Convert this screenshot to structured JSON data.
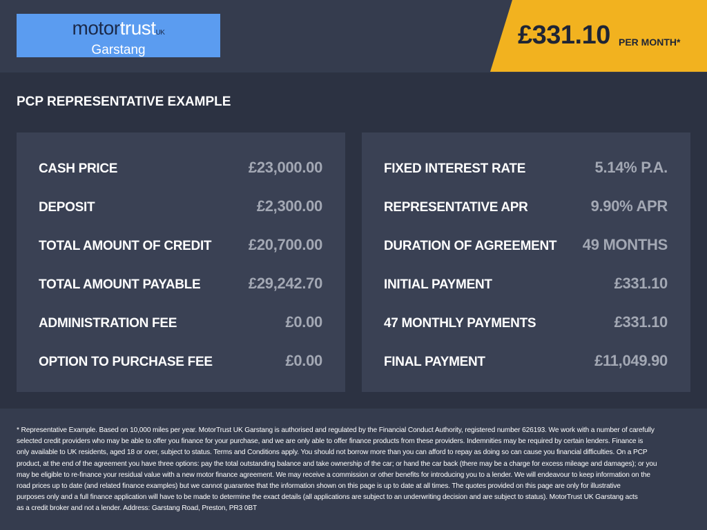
{
  "header": {
    "logo": {
      "part1": "motor",
      "part2": "trust",
      "suffix": "UK",
      "location": "Garstang"
    },
    "price": "£331.10",
    "per_month": "PER MONTH*"
  },
  "section_title": "PCP REPRESENTATIVE EXAMPLE",
  "left_rows": [
    {
      "label": "CASH PRICE",
      "value": "£23,000.00"
    },
    {
      "label": "DEPOSIT",
      "value": "£2,300.00"
    },
    {
      "label": "TOTAL AMOUNT OF CREDIT",
      "value": "£20,700.00"
    },
    {
      "label": "TOTAL AMOUNT PAYABLE",
      "value": "£29,242.70"
    },
    {
      "label": "ADMINISTRATION FEE",
      "value": "£0.00"
    },
    {
      "label": "OPTION TO PURCHASE FEE",
      "value": "£0.00"
    }
  ],
  "right_rows": [
    {
      "label": "FIXED INTEREST RATE",
      "value": "5.14% P.A."
    },
    {
      "label": "REPRESENTATIVE APR",
      "value": "9.90% APR"
    },
    {
      "label": "DURATION OF AGREEMENT",
      "value": "49 MONTHS"
    },
    {
      "label": "INITIAL PAYMENT",
      "value": "£331.10"
    },
    {
      "label": "47 MONTHLY PAYMENTS",
      "value": "£331.10"
    },
    {
      "label": "FINAL PAYMENT",
      "value": "£11,049.90"
    }
  ],
  "disclaimer_lines": [
    "* Representative Example. Based on 10,000 miles per year. MotorTrust UK Garstang is authorised and regulated by the Financial Conduct Authority, registered number 626193. We work with a number of carefully",
    "selected credit providers who may be able to offer you finance for your purchase, and we are only able to offer finance products from these providers. Indemnities may be required by certain lenders. Finance is",
    "only available to UK residents, aged 18 or over, subject to status. Terms and Conditions apply. You should not borrow more than you can afford to repay as doing so can cause you financial difficulties. On a PCP",
    "product, at the end of the agreement you have three options: pay the total outstanding balance and take ownership of the car; or hand the car back (there may be a charge for excess mileage and damages); or you",
    "may be eligible to re-finance your residual value with a new motor finance agreement. We may receive a commission or other benefits for introducing you to a lender. We will endeavour to keep information on the",
    "road prices up to date (and related finance examples) but we cannot guarantee that the information shown on this page is up to date at all times. The quotes provided on this page are only for illustrative",
    "purposes only and a full finance application will have to be made to determine the exact details (all applications are subject to an underwriting decision and are subject to status). MotorTrust UK Garstang acts",
    "as a credit broker and not a lender. Address: Garstang Road, Preston, PR3 0BT"
  ],
  "colors": {
    "accent": "#f2b21f",
    "logo_bg": "#5b9cf0",
    "card": "#3a4154",
    "background": "#2c3242"
  }
}
